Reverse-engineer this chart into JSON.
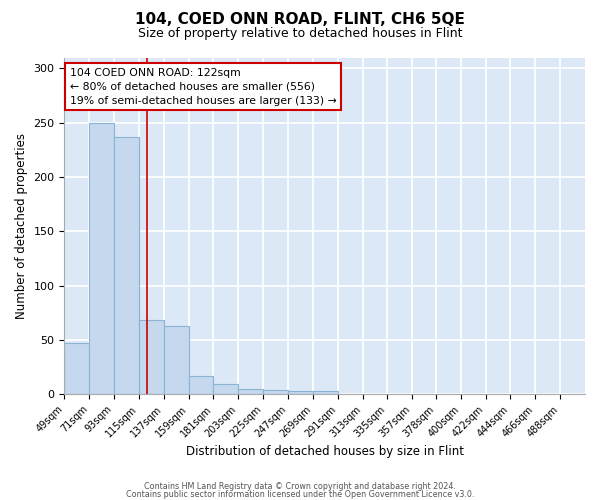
{
  "title": "104, COED ONN ROAD, FLINT, CH6 5QE",
  "subtitle": "Size of property relative to detached houses in Flint",
  "xlabel": "Distribution of detached houses by size in Flint",
  "ylabel": "Number of detached properties",
  "bar_color": "#c5d8ee",
  "bar_edge_color": "#8ab4d4",
  "background_color": "#dce8f5",
  "grid_color": "#ffffff",
  "annotation_line_color": "#cc0000",
  "property_sqm": 122,
  "annotation_text_line1": "104 COED ONN ROAD: 122sqm",
  "annotation_text_line2": "← 80% of detached houses are smaller (556)",
  "annotation_text_line3": "19% of semi-detached houses are larger (133) →",
  "bin_labels": [
    "49sqm",
    "71sqm",
    "93sqm",
    "115sqm",
    "137sqm",
    "159sqm",
    "181sqm",
    "203sqm",
    "225sqm",
    "247sqm",
    "269sqm",
    "291sqm",
    "313sqm",
    "335sqm",
    "357sqm",
    "378sqm",
    "400sqm",
    "422sqm",
    "444sqm",
    "466sqm",
    "488sqm"
  ],
  "bin_edges": [
    49,
    71,
    93,
    115,
    137,
    159,
    181,
    203,
    225,
    247,
    269,
    291,
    313,
    335,
    357,
    378,
    400,
    422,
    444,
    466,
    488
  ],
  "bin_counts": [
    47,
    250,
    237,
    68,
    63,
    17,
    9,
    5,
    4,
    3,
    3,
    0,
    0,
    0,
    0,
    0,
    0,
    0,
    0,
    0,
    0
  ],
  "ylim": [
    0,
    310
  ],
  "yticks": [
    0,
    50,
    100,
    150,
    200,
    250,
    300
  ],
  "footnote1": "Contains HM Land Registry data © Crown copyright and database right 2024.",
  "footnote2": "Contains public sector information licensed under the Open Government Licence v3.0."
}
